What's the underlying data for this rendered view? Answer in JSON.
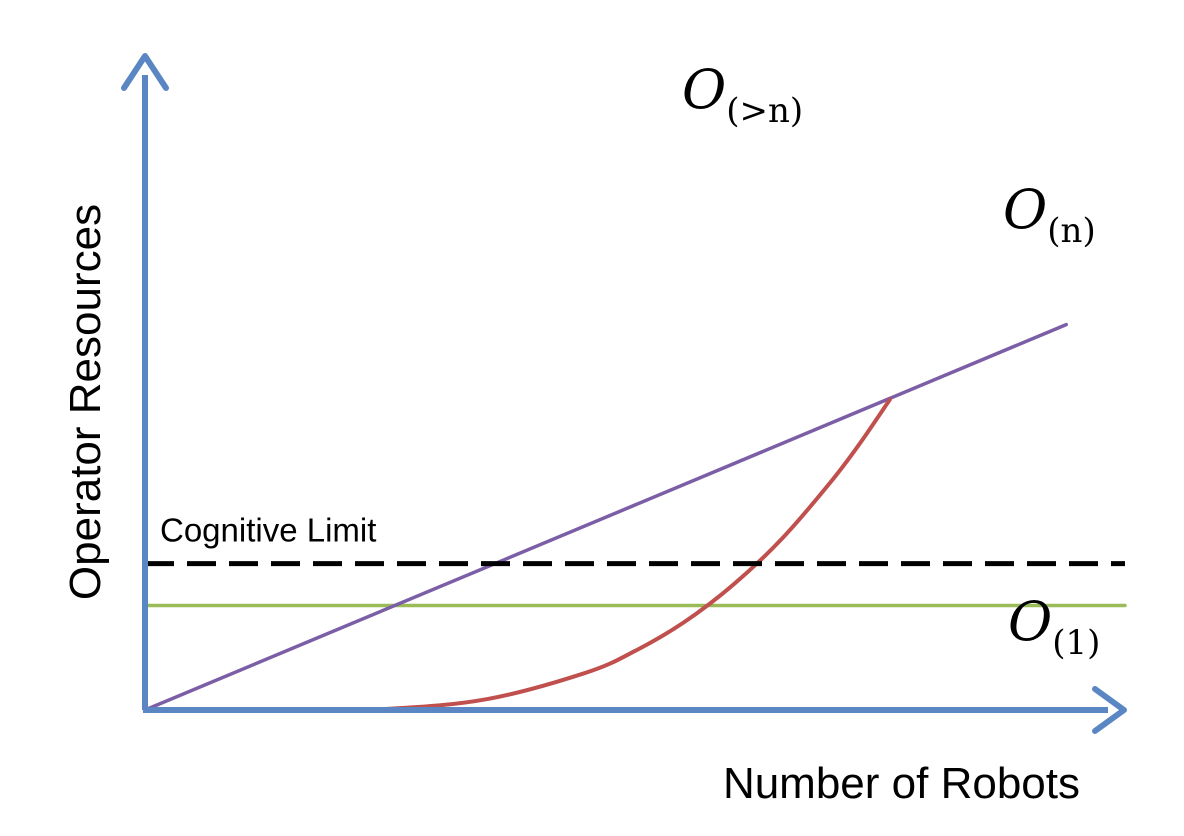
{
  "chart_data": {
    "type": "line",
    "title": "",
    "xlabel": "Number of Robots",
    "ylabel": "Operator Resources",
    "xlim": [
      0,
      10
    ],
    "ylim": [
      0,
      10
    ],
    "grid": false,
    "legend": "none",
    "axis_color": "#5b86c4",
    "series": [
      {
        "key": "constant",
        "name_main": "O",
        "name_sub": "(1)",
        "color": "#9bbb59",
        "x": [
          0,
          10
        ],
        "y": [
          2.55,
          2.55
        ]
      },
      {
        "key": "linear",
        "name_main": "O",
        "name_sub": "(n)",
        "color": "#7b5ea6",
        "x": [
          0,
          9.4
        ],
        "y": [
          0,
          9.4
        ]
      },
      {
        "key": "superlinear",
        "name_main": "O",
        "name_sub": "(>n)",
        "color": "#c0504d",
        "x": [
          0,
          1.5,
          2.5,
          3.5,
          4.5,
          5.0,
          5.5,
          6.0,
          6.5,
          7.0,
          7.3,
          7.6
        ],
        "y": [
          0,
          0,
          0.03,
          0.27,
          0.91,
          1.44,
          2.14,
          3.05,
          4.18,
          5.57,
          6.52,
          7.57
        ]
      }
    ],
    "reference_lines": [
      {
        "label": "Cognitive Limit",
        "y": 3.57,
        "color": "#000000",
        "style": "dashed"
      }
    ]
  }
}
